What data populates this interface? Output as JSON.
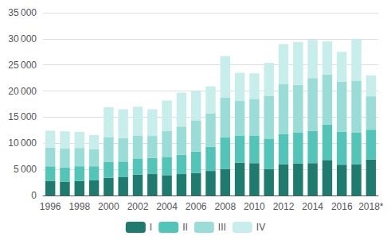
{
  "chart_data": {
    "type": "bar",
    "stacked": true,
    "categories": [
      "1996",
      null,
      "1998",
      null,
      "2000",
      null,
      "2002",
      null,
      "2004",
      null,
      "2006",
      null,
      "2008",
      null,
      "2010",
      null,
      "2012",
      null,
      "2014",
      null,
      "2016",
      null,
      "2018*"
    ],
    "series": [
      {
        "name": "I",
        "color": "#1e7b6e",
        "values": [
          2800,
          2600,
          2800,
          2900,
          3400,
          3500,
          4000,
          4100,
          3900,
          4100,
          4300,
          4700,
          5100,
          6300,
          6200,
          5100,
          6000,
          6100,
          6200,
          6800,
          5900,
          6000,
          6900
        ]
      },
      {
        "name": "II",
        "color": "#52c5b8",
        "values": [
          2800,
          2800,
          2800,
          2700,
          3000,
          3000,
          3100,
          3100,
          3500,
          3700,
          4100,
          4600,
          6000,
          5200,
          5300,
          5800,
          5800,
          6000,
          6200,
          6800,
          6300,
          6100,
          5700
        ]
      },
      {
        "name": "III",
        "color": "#9addd6",
        "values": [
          3600,
          3600,
          3500,
          3300,
          4800,
          4500,
          4400,
          4200,
          5000,
          5400,
          6000,
          6400,
          7700,
          6600,
          7000,
          8200,
          9500,
          9100,
          10100,
          9600,
          9600,
          9900,
          6400
        ]
      },
      {
        "name": "IV",
        "color": "#c8eeeb",
        "values": [
          3200,
          3300,
          3100,
          2700,
          5700,
          5500,
          5500,
          5100,
          5800,
          6500,
          5600,
          5200,
          7900,
          5400,
          4900,
          6300,
          7700,
          8200,
          7300,
          6300,
          5700,
          8000,
          4000
        ]
      }
    ],
    "ylim": [
      0,
      35000
    ],
    "yticks": [
      0,
      {
        "value": 5000,
        "label": "5 000"
      },
      {
        "value": 10000,
        "label": "10 000"
      },
      {
        "value": 15000,
        "label": "15 000"
      },
      {
        "value": 20000,
        "label": "20 000"
      },
      {
        "value": 25000,
        "label": "25 000"
      },
      {
        "value": 30000,
        "label": "30 000"
      },
      {
        "value": 35000,
        "label": "35 000"
      }
    ],
    "grid": true,
    "legend": "bottom"
  }
}
